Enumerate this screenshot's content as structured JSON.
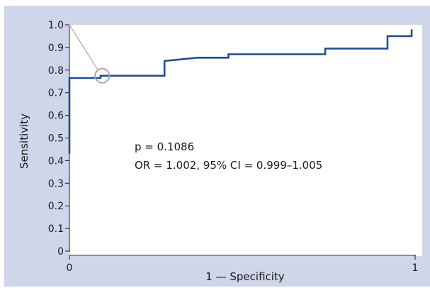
{
  "chart_data": {
    "type": "line",
    "title": "",
    "xlabel": "1 — Specificity",
    "ylabel": "Sensitivity",
    "xlim": [
      0,
      1
    ],
    "ylim": [
      0,
      1
    ],
    "x_ticks": [
      "0",
      "1"
    ],
    "y_ticks": [
      "0",
      "0.1",
      "0.2",
      "0.3",
      "0.4",
      "0.5",
      "0.6",
      "0.7",
      "0.8",
      "0.9",
      "1.0"
    ],
    "grid": false,
    "series": [
      {
        "color": "#1f4e8c",
        "step": true,
        "points": [
          [
            0.0,
            0.43
          ],
          [
            0.0,
            0.765
          ],
          [
            0.09,
            0.765
          ],
          [
            0.09,
            0.775
          ],
          [
            0.275,
            0.775
          ],
          [
            0.275,
            0.84
          ],
          [
            0.37,
            0.855
          ],
          [
            0.46,
            0.855
          ],
          [
            0.46,
            0.87
          ],
          [
            0.74,
            0.87
          ],
          [
            0.74,
            0.895
          ],
          [
            0.92,
            0.895
          ],
          [
            0.92,
            0.95
          ],
          [
            0.99,
            0.95
          ],
          [
            0.99,
            0.98
          ]
        ]
      }
    ],
    "annotations": [
      "p = 0.1086",
      "OR = 1.002, 95% CI = 0.999–1.005"
    ],
    "callout": {
      "from": [
        0.0,
        1.0
      ],
      "to": [
        0.095,
        0.775
      ],
      "color": "#a8a8a8"
    }
  }
}
